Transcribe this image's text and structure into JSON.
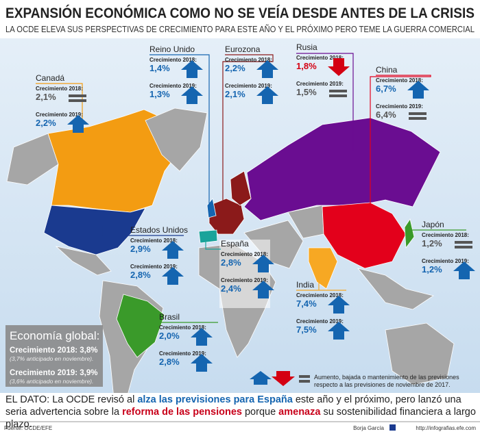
{
  "header": {
    "title": "EXPANSIÓN ECONÓMICA COMO NO SE VEÍA DESDE ANTES DE LA CRISIS",
    "subtitle": "LA OCDE ELEVA SUS PERSPECTIVAS DE CRECIMIENTO PARA ESTE AÑO Y EL PRÓXIMO PERO TEME LA GUERRA COMERCIAL"
  },
  "countries": [
    {
      "name": "Canadá",
      "rows": [
        {
          "label": "Crecimiento 2018:",
          "value": "2,1%"
        },
        {
          "label": "Crecimiento 2019:",
          "value": "2,2%"
        }
      ]
    },
    {
      "name": "Reino Unido",
      "rows": [
        {
          "label": "Crecimiento 2018:",
          "value": "1,4%"
        },
        {
          "label": "Crecimiento 2019:",
          "value": "1,3%"
        }
      ]
    },
    {
      "name": "Eurozona",
      "rows": [
        {
          "label": "Crecimiento 2018:",
          "value": "2,2%"
        },
        {
          "label": "Crecimiento 2019:",
          "value": "2,1%"
        }
      ]
    },
    {
      "name": "Rusia",
      "rows": [
        {
          "label": "Crecimiento 2018:",
          "value": "1,8%"
        },
        {
          "label": "Crecimiento 2019:",
          "value": "1,5%"
        }
      ]
    },
    {
      "name": "China",
      "rows": [
        {
          "label": "Crecimiento 2018:",
          "value": "6,7%"
        },
        {
          "label": "Crecimiento 2019:",
          "value": "6,4%"
        }
      ]
    },
    {
      "name": "Japón",
      "rows": [
        {
          "label": "Crecimiento 2018:",
          "value": "1,2%"
        },
        {
          "label": "Crecimiento 2019:",
          "value": "1,2%"
        }
      ]
    },
    {
      "name": "Estados Unidos",
      "rows": [
        {
          "label": "Crecimiento 2018:",
          "value": "2,9%"
        },
        {
          "label": "Crecimiento 2019:",
          "value": "2,8%"
        }
      ]
    },
    {
      "name": "España",
      "rows": [
        {
          "label": "Crecimiento 2018:",
          "value": "2,8%"
        },
        {
          "label": "Crecimiento 2019:",
          "value": "2,4%"
        }
      ]
    },
    {
      "name": "India",
      "rows": [
        {
          "label": "Crecimiento 2018:",
          "value": "7,4%"
        },
        {
          "label": "Crecimiento 2019:",
          "value": "7,5%"
        }
      ]
    },
    {
      "name": "Brasil",
      "rows": [
        {
          "label": "Crecimiento 2018:",
          "value": "2,0%"
        },
        {
          "label": "Crecimiento 2019:",
          "value": "2,8%"
        }
      ]
    }
  ],
  "global": {
    "title": "Economía global:",
    "line1": "Crecimiento 2018: 3,8%",
    "note1": "(3,7% anticipado en noviembre).",
    "line2": "Crecimiento 2019: 3,9%",
    "note2": "(3,6% anticipado en noviembre)."
  },
  "legend": {
    "line1": "Aumento, bajada o mantenimiento de las previsiones",
    "line2": "respecto a las previsiones de noviembre de 2017."
  },
  "dato": {
    "segments": [
      "EL DATO: La OCDE revisó al ",
      "alza las previsiones para España",
      " este año y el próximo, pero lanzó una seria advertencia sobre la ",
      "reforma de las pensiones",
      " porque ",
      "amenaza",
      " su sostenibilidad financiera a largo plazo."
    ]
  },
  "footer": {
    "source": "Fuente: OCDE/EFE",
    "author": "Borja García",
    "url": "http://infografias.efe.com"
  }
}
